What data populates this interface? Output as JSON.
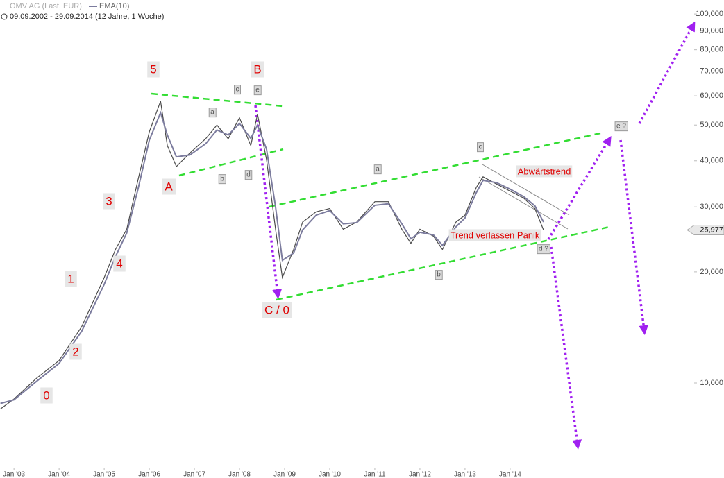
{
  "chart_data": {
    "type": "line",
    "subtitle": "09.09.2002 - 29.09.2014 (12 Jahre, 1 Woche)",
    "log_y": true,
    "x": [
      2002.7,
      2003.0,
      2003.5,
      2004.0,
      2004.5,
      2005.0,
      2005.25,
      2005.5,
      2005.75,
      2006.0,
      2006.25,
      2006.4,
      2006.6,
      2006.9,
      2007.25,
      2007.5,
      2007.75,
      2008.0,
      2008.25,
      2008.4,
      2008.6,
      2008.8,
      2008.95,
      2009.2,
      2009.4,
      2009.7,
      2010.0,
      2010.3,
      2010.6,
      2011.0,
      2011.3,
      2011.6,
      2011.8,
      2012.0,
      2012.3,
      2012.5,
      2012.8,
      2013.0,
      2013.25,
      2013.4,
      2013.7,
      2014.0,
      2014.3,
      2014.55,
      2014.74
    ],
    "series": [
      {
        "name": "OMV AG (Last, EUR)",
        "color": "#4a4a4a",
        "values": [
          8.5,
          9.05,
          10.3,
          11.5,
          14.2,
          19.3,
          23,
          26.1,
          35.5,
          47.9,
          58,
          44,
          38.6,
          42,
          45.9,
          50,
          45.9,
          52.3,
          44,
          53.5,
          40.3,
          26.1,
          19.3,
          23,
          27.3,
          29.1,
          29.7,
          26.1,
          27.3,
          31,
          31,
          26.1,
          23.9,
          26.1,
          25,
          23,
          27.3,
          28.5,
          33.9,
          36.2,
          34.6,
          33.1,
          31.7,
          29.7,
          25.977
        ]
      },
      {
        "name": "EMA(10)",
        "color": "#7c7c9e",
        "values": [
          8.8,
          9.0,
          10.1,
          11.3,
          13.8,
          18.5,
          22,
          25.5,
          33.5,
          45.5,
          54,
          47,
          41,
          41.5,
          44.5,
          48.5,
          47,
          50.5,
          46,
          50,
          43,
          30,
          21.5,
          22.5,
          26,
          28.5,
          29.3,
          27,
          27.2,
          30.3,
          30.6,
          27,
          24.6,
          25.6,
          25.2,
          23.6,
          26.5,
          28,
          32.8,
          35.4,
          34.9,
          33.5,
          32,
          30.2,
          27.3
        ]
      }
    ],
    "last_price": {
      "value": 25.977,
      "label": "25,977"
    },
    "xlim": [
      2002.69,
      2018.08
    ],
    "xticks": [
      {
        "value": 2003,
        "label": "Jan '03"
      },
      {
        "value": 2004,
        "label": "Jan '04"
      },
      {
        "value": 2005,
        "label": "Jan '05"
      },
      {
        "value": 2006,
        "label": "Jan '06"
      },
      {
        "value": 2007,
        "label": "Jan '07"
      },
      {
        "value": 2008,
        "label": "Jan '08"
      },
      {
        "value": 2009,
        "label": "Jan '09"
      },
      {
        "value": 2010,
        "label": "Jan '10"
      },
      {
        "value": 2011,
        "label": "Jan '11"
      },
      {
        "value": 2012,
        "label": "Jan '12"
      },
      {
        "value": 2013,
        "label": "Jan '13"
      },
      {
        "value": 2014,
        "label": "Jan '14"
      }
    ],
    "ylim": [
      6.0,
      109.1
    ],
    "yticks": [
      {
        "value": 10,
        "label": "10,000"
      },
      {
        "value": 20,
        "label": "20,000"
      },
      {
        "value": 30,
        "label": "30,000"
      },
      {
        "value": 40,
        "label": "40,000"
      },
      {
        "value": 50,
        "label": "50,000"
      },
      {
        "value": 60,
        "label": "60,000"
      },
      {
        "value": 70,
        "label": "70,000"
      },
      {
        "value": 80,
        "label": "80,000"
      },
      {
        "value": 90,
        "label": "90,000"
      },
      {
        "value": 100,
        "label": "100,000"
      }
    ],
    "wave_labels": [
      "5",
      "B",
      "A",
      "3",
      "4",
      "1",
      "2",
      "0",
      "C / 0"
    ],
    "notes": [
      "Abwärtstrend",
      "Trend verlassen Panik"
    ],
    "sub_labels": [
      "c",
      "e",
      "a",
      "b",
      "d",
      "a",
      "c",
      "b",
      "d ?",
      "e ?"
    ]
  }
}
